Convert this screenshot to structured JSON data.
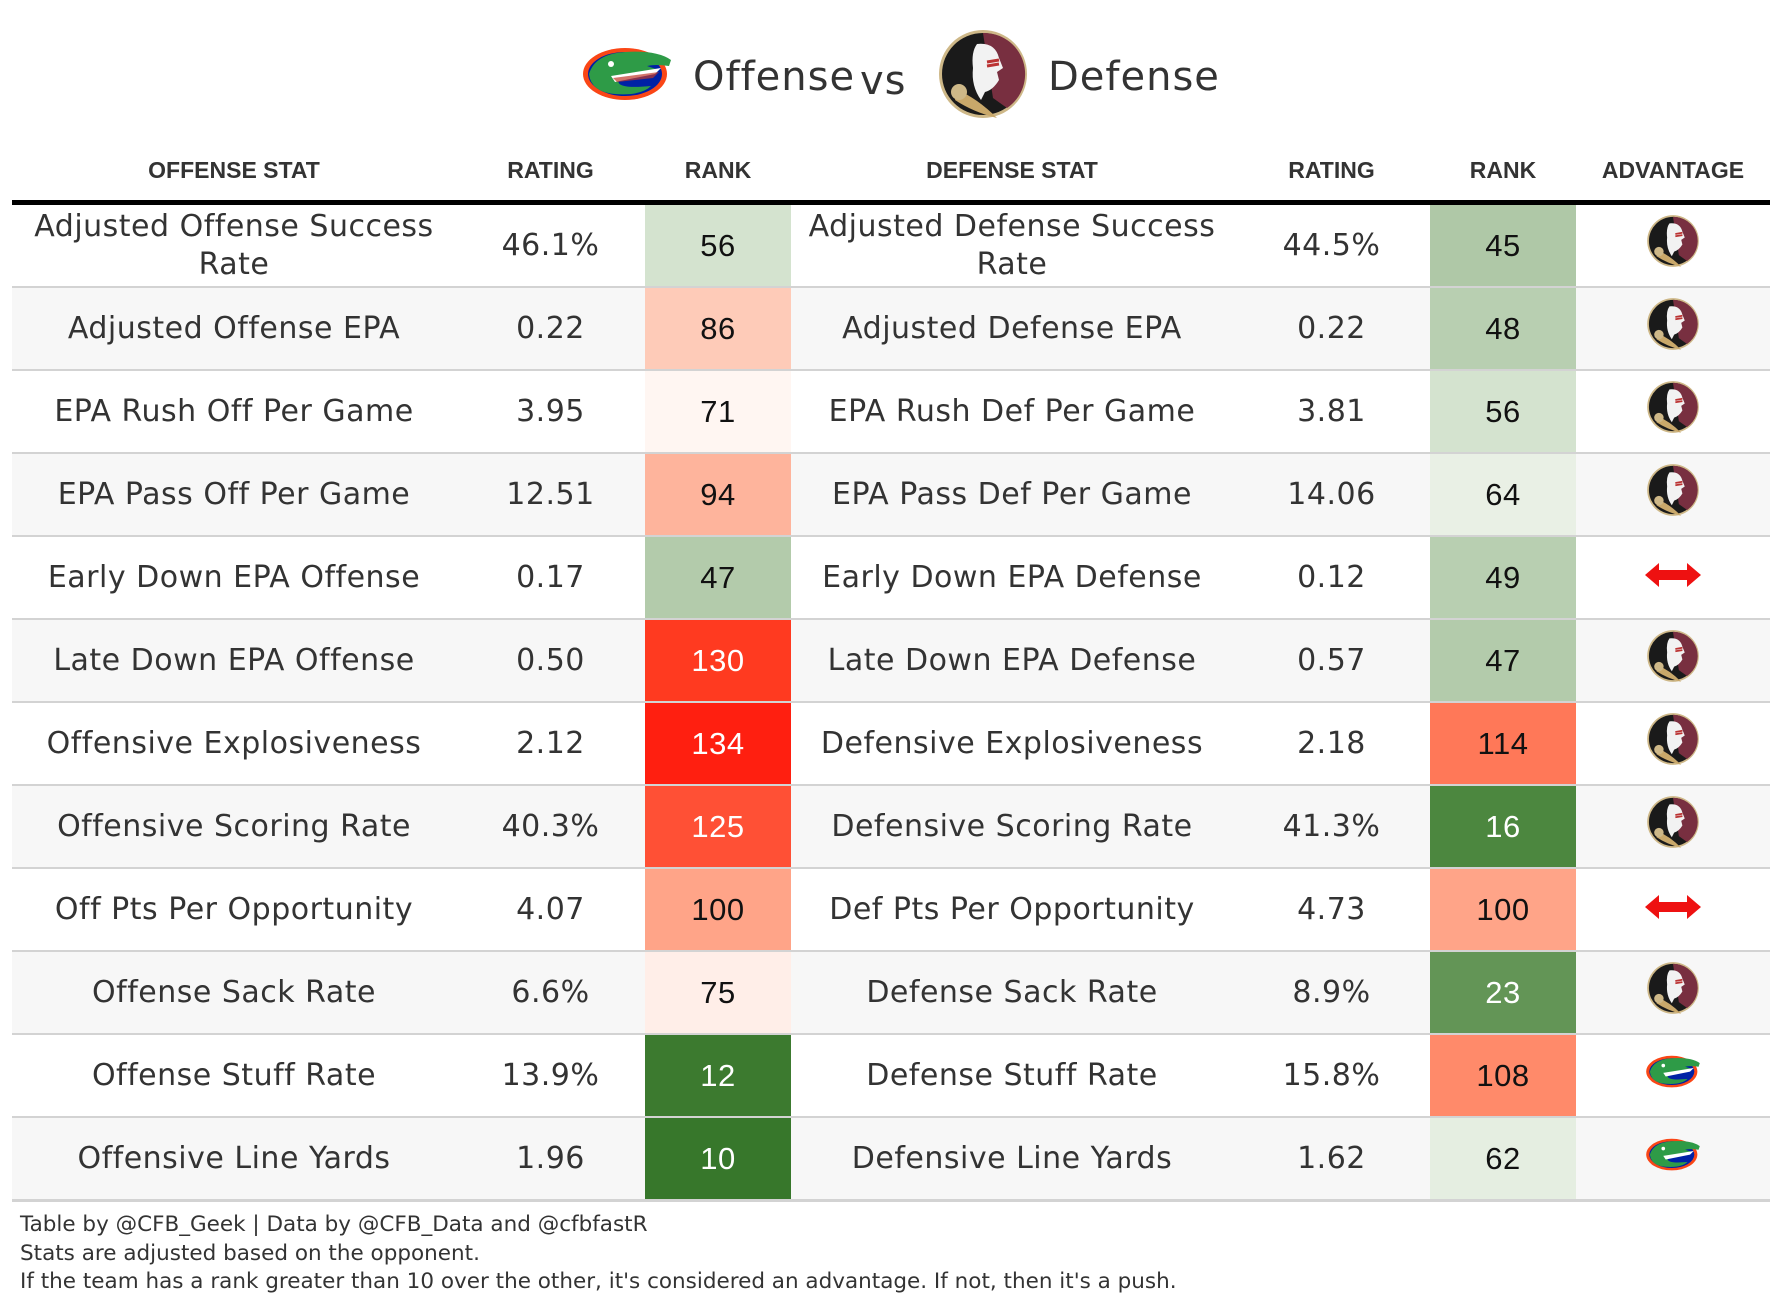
{
  "title": {
    "left_team": "Florida Gators",
    "left_word": "Offense",
    "vs": "vs",
    "right_team": "Florida State Seminoles",
    "right_word": "Defense"
  },
  "columns": {
    "offense_stat": "OFFENSE STAT",
    "offense_rating": "RATING",
    "offense_rank": "RANK",
    "defense_stat": "DEFENSE STAT",
    "defense_rating": "RATING",
    "defense_rank": "RANK",
    "advantage": "ADVANTAGE"
  },
  "colors": {
    "gator_orange": "#fa4616",
    "gator_blue": "#0021a5",
    "gator_green": "#2e9b47",
    "fsu_garnet": "#782f40",
    "fsu_gold": "#ceb888",
    "push_red": "#ee1111"
  },
  "rows": [
    {
      "off_stat": "Adjusted Offense Success Rate",
      "off_rating": "46.1%",
      "off_rank": "56",
      "off_rank_color": "#d4e3cf",
      "def_stat": "Adjusted Defense Success Rate",
      "def_rating": "44.5%",
      "def_rank": "45",
      "def_rank_color": "#afc8a7",
      "advantage": "fsu"
    },
    {
      "off_stat": "Adjusted Offense EPA",
      "off_rating": "0.22",
      "off_rank": "86",
      "off_rank_color": "#fecbb8",
      "def_stat": "Adjusted Defense EPA",
      "def_rating": "0.22",
      "def_rank": "48",
      "def_rank_color": "#b8cfb1",
      "advantage": "fsu"
    },
    {
      "off_stat": "EPA Rush Off Per Game",
      "off_rating": "3.95",
      "off_rank": "71",
      "off_rank_color": "#fff6f2",
      "def_stat": "EPA Rush Def Per Game",
      "def_rating": "3.81",
      "def_rank": "56",
      "def_rank_color": "#d4e3cf",
      "advantage": "fsu"
    },
    {
      "off_stat": "EPA Pass Off Per Game",
      "off_rating": "12.51",
      "off_rank": "94",
      "off_rank_color": "#feb49c",
      "def_stat": "EPA Pass Def Per Game",
      "def_rating": "14.06",
      "def_rank": "64",
      "def_rank_color": "#e9f0e5",
      "advantage": "fsu"
    },
    {
      "off_stat": "Early Down EPA Offense",
      "off_rating": "0.17",
      "off_rank": "47",
      "off_rank_color": "#b3cbab",
      "def_stat": "Early Down EPA Defense",
      "def_rating": "0.12",
      "def_rank": "49",
      "def_rank_color": "#b8cfb1",
      "advantage": "push"
    },
    {
      "off_stat": "Late Down EPA Offense",
      "off_rating": "0.50",
      "off_rank": "130",
      "off_rank_color": "#ff3a20",
      "def_stat": "Late Down EPA Defense",
      "def_rating": "0.57",
      "def_rank": "47",
      "def_rank_color": "#b3cbab",
      "advantage": "fsu"
    },
    {
      "off_stat": "Offensive Explosiveness",
      "off_rating": "2.12",
      "off_rank": "134",
      "off_rank_color": "#ff1f10",
      "def_stat": "Defensive Explosiveness",
      "def_rating": "2.18",
      "def_rank": "114",
      "def_rank_color": "#ff7858",
      "advantage": "fsu"
    },
    {
      "off_stat": "Offensive Scoring Rate",
      "off_rating": "40.3%",
      "off_rank": "125",
      "off_rank_color": "#ff5035",
      "def_stat": "Defensive Scoring Rate",
      "def_rating": "41.3%",
      "def_rank": "16",
      "def_rank_color": "#4c873f",
      "advantage": "fsu"
    },
    {
      "off_stat": "Off Pts Per Opportunity",
      "off_rating": "4.07",
      "off_rank": "100",
      "off_rank_color": "#ffa488",
      "def_stat": "Def Pts Per Opportunity",
      "def_rating": "4.73",
      "def_rank": "100",
      "def_rank_color": "#ffa488",
      "advantage": "push"
    },
    {
      "off_stat": "Offense Sack Rate",
      "off_rating": "6.6%",
      "off_rank": "75",
      "off_rank_color": "#ffeee8",
      "def_stat": "Defense Sack Rate",
      "def_rating": "8.9%",
      "def_rank": "23",
      "def_rank_color": "#639556",
      "advantage": "fsu"
    },
    {
      "off_stat": "Offense Stuff Rate",
      "off_rating": "13.9%",
      "off_rank": "12",
      "off_rank_color": "#3c7a2f",
      "def_stat": "Defense Stuff Rate",
      "def_rating": "15.8%",
      "def_rank": "108",
      "def_rank_color": "#ff8a6a",
      "advantage": "uf"
    },
    {
      "off_stat": "Offensive Line Yards",
      "off_rating": "1.96",
      "off_rank": "10",
      "off_rank_color": "#37772b",
      "def_stat": "Defensive Line Yards",
      "def_rating": "1.62",
      "def_rank": "62",
      "def_rank_color": "#e5eee1",
      "advantage": "uf"
    }
  ],
  "footnotes": [
    "Table by @CFB_Geek | Data by @CFB_Data and @cfbfastR",
    "Stats are adjusted based on the opponent.",
    "If the team has a rank greater than 10 over the other, it's considered an advantage. If not, then it's a push."
  ]
}
